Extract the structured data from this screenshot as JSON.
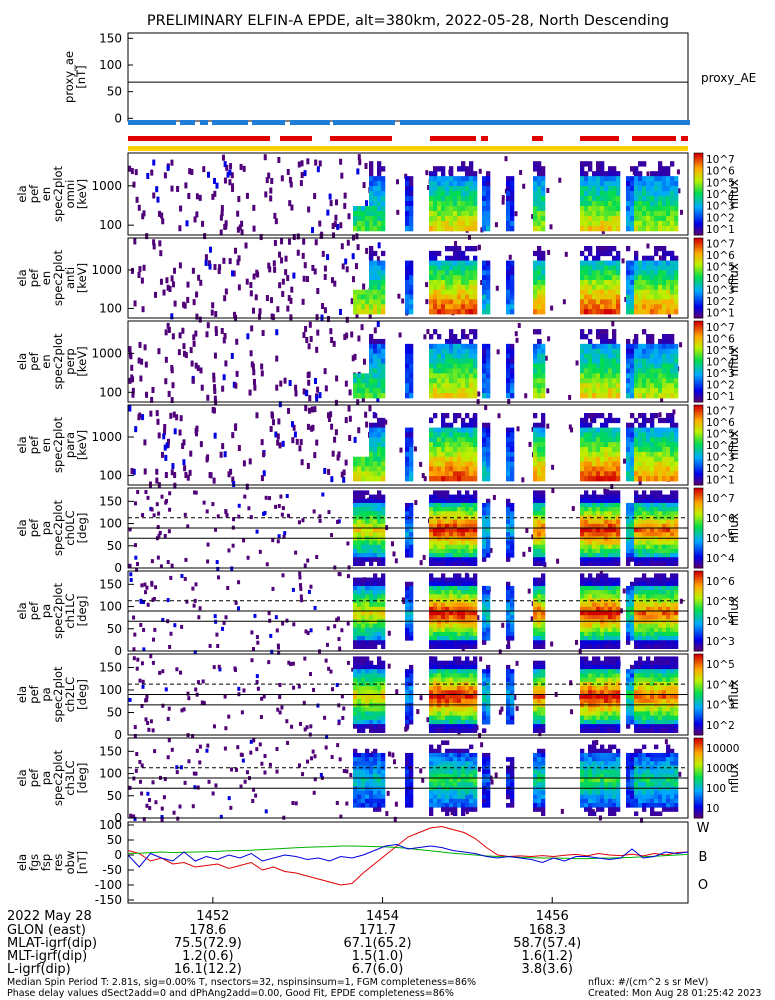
{
  "title": "PRELIMINARY ELFIN-A EPDE, alt=380km, 2022-05-28, North Descending",
  "chart_data": [
    {
      "type": "line",
      "name": "proxy_ae",
      "ylabel": [
        "proxy_ae",
        "[nT]"
      ],
      "ylim": [
        -5,
        160
      ],
      "ticks": [
        "150",
        "100",
        "50",
        "0"
      ],
      "tick_values": [
        150,
        100,
        50,
        0
      ],
      "legend": "proxy_AE",
      "value": 68
    },
    {
      "type": "heatmap",
      "name": "energy spectrogram (omni)",
      "ylabel": [
        "ela",
        "pef",
        "en",
        "spec2plot",
        "omni",
        "[keV]"
      ],
      "yscale": "log",
      "ticks": [
        "1000",
        "100"
      ],
      "zlabel": "nflux",
      "zticks": [
        "10^7",
        "10^6",
        "10^5",
        "10^4",
        "10^3",
        "10^2",
        "10^1"
      ]
    },
    {
      "type": "heatmap",
      "name": "energy spectrogram (anti)",
      "ylabel": [
        "ela",
        "pef",
        "en",
        "spec2plot",
        "anti",
        "[keV]"
      ],
      "yscale": "log",
      "ticks": [
        "1000",
        "100"
      ],
      "zlabel": "nflux",
      "zticks": [
        "10^7",
        "10^6",
        "10^5",
        "10^4",
        "10^3",
        "10^2",
        "10^1"
      ]
    },
    {
      "type": "heatmap",
      "name": "energy spectrogram (perp)",
      "ylabel": [
        "ela",
        "pef",
        "en",
        "spec2plot",
        "perp",
        "[keV]"
      ],
      "yscale": "log",
      "ticks": [
        "1000",
        "100"
      ],
      "zlabel": "nflux",
      "zticks": [
        "10^7",
        "10^6",
        "10^5",
        "10^4",
        "10^3",
        "10^2",
        "10^1"
      ]
    },
    {
      "type": "heatmap",
      "name": "energy spectrogram (para)",
      "ylabel": [
        "ela",
        "pef",
        "en",
        "spec2plot",
        "para",
        "[keV]"
      ],
      "yscale": "log",
      "ticks": [
        "1000",
        "100"
      ],
      "zlabel": "nflux",
      "zticks": [
        "10^7",
        "10^6",
        "10^5",
        "10^4",
        "10^3",
        "10^2",
        "10^1"
      ]
    },
    {
      "type": "heatmap",
      "name": "pitch angle ch0LC",
      "ylabel": [
        "ela",
        "pef",
        "pa",
        "spec2plot",
        "ch0LC",
        "[deg]"
      ],
      "ylim": [
        0,
        180
      ],
      "ticks": [
        "150",
        "100",
        "50",
        "0"
      ],
      "tick_values": [
        150,
        100,
        50,
        0
      ],
      "zlabel": "nflux",
      "zticks": [
        "10^7",
        "10^6",
        "10^5",
        "10^4"
      ]
    },
    {
      "type": "heatmap",
      "name": "pitch angle ch1LC",
      "ylabel": [
        "ela",
        "pef",
        "pa",
        "spec2plot",
        "ch1LC",
        "[deg]"
      ],
      "ylim": [
        0,
        180
      ],
      "ticks": [
        "150",
        "100",
        "50",
        "0"
      ],
      "tick_values": [
        150,
        100,
        50,
        0
      ],
      "zlabel": "nflux",
      "zticks": [
        "10^6",
        "10^5",
        "10^4",
        "10^3"
      ]
    },
    {
      "type": "heatmap",
      "name": "pitch angle ch2LC",
      "ylabel": [
        "ela",
        "pef",
        "pa",
        "spec2plot",
        "ch2LC",
        "[deg]"
      ],
      "ylim": [
        0,
        180
      ],
      "ticks": [
        "150",
        "100",
        "50",
        "0"
      ],
      "tick_values": [
        150,
        100,
        50,
        0
      ],
      "zlabel": "nflux",
      "zticks": [
        "10^5",
        "10^4",
        "10^3",
        "10^2"
      ]
    },
    {
      "type": "heatmap",
      "name": "pitch angle ch3LC",
      "ylabel": [
        "ela",
        "pef",
        "pa",
        "spec2plot",
        "ch3LC",
        "[deg]"
      ],
      "ylim": [
        0,
        180
      ],
      "ticks": [
        "150",
        "100",
        "50",
        "0"
      ],
      "tick_values": [
        150,
        100,
        50,
        0
      ],
      "zlabel": "nflux",
      "zticks": [
        "10000",
        "1000",
        "100",
        "10"
      ]
    },
    {
      "type": "line",
      "name": "magnetic residual",
      "ylabel": [
        "ela",
        "fgs",
        "fsp",
        "res",
        "obw",
        "[nT]"
      ],
      "ylim": [
        -160,
        110
      ],
      "ticks": [
        "100",
        "50",
        "0",
        "-50",
        "-100",
        "-150"
      ],
      "tick_values": [
        100,
        50,
        0,
        -50,
        -100,
        -150
      ],
      "legend": [
        "W",
        "B",
        "O"
      ],
      "x": [
        0,
        2,
        4,
        6,
        8,
        10,
        12,
        14,
        16,
        18,
        20,
        22,
        24,
        26,
        28,
        30,
        32,
        34,
        36,
        38,
        40,
        42,
        44,
        46,
        48,
        50,
        52,
        54,
        56,
        58,
        60,
        62,
        64,
        66,
        68,
        70,
        72,
        74,
        76,
        78,
        80,
        82,
        84,
        86,
        88,
        90,
        92,
        94,
        96,
        98,
        100
      ],
      "series": [
        {
          "color": "#e00000",
          "values": [
            15,
            5,
            -20,
            -10,
            -30,
            -25,
            -40,
            -35,
            -30,
            -45,
            -35,
            -25,
            -50,
            -40,
            -55,
            -60,
            -70,
            -80,
            -90,
            -100,
            -95,
            -60,
            -30,
            0,
            30,
            60,
            75,
            90,
            95,
            85,
            75,
            55,
            25,
            0,
            -5,
            -3,
            -5,
            -2,
            -5,
            -1,
            2,
            -3,
            5,
            0,
            -2,
            3,
            -3,
            5,
            0,
            8,
            10
          ]
        },
        {
          "color": "#00b000",
          "values": [
            5,
            6,
            8,
            10,
            8,
            9,
            10,
            11,
            12,
            14,
            15,
            16,
            18,
            20,
            22,
            24,
            26,
            27,
            28,
            30,
            30,
            29,
            28,
            27,
            25,
            22,
            18,
            14,
            10,
            6,
            3,
            0,
            -3,
            -5,
            -6,
            -8,
            -9,
            -10,
            -10,
            -11,
            -12,
            -12,
            -11,
            -10,
            -9,
            -8,
            -6,
            -4,
            -2,
            0,
            2
          ]
        },
        {
          "color": "#0000e0",
          "values": [
            0,
            -40,
            5,
            -10,
            -20,
            10,
            -20,
            -5,
            -15,
            0,
            -10,
            5,
            -20,
            -10,
            0,
            -5,
            -15,
            -10,
            -20,
            -5,
            -10,
            0,
            15,
            30,
            35,
            20,
            25,
            30,
            25,
            15,
            10,
            5,
            -5,
            -10,
            -5,
            -10,
            -15,
            -25,
            -10,
            -20,
            -5,
            -5,
            -10,
            -15,
            -10,
            20,
            -10,
            -5,
            10,
            5,
            10
          ]
        }
      ]
    }
  ],
  "time_axis": {
    "ticks": [
      "1452",
      "1454",
      "1456"
    ],
    "tick_values": [
      52,
      54,
      56
    ],
    "range": [
      51.0,
      57.6
    ]
  },
  "footer_table": {
    "date": "2022 May 28",
    "rows": [
      {
        "label": "GLON (east)",
        "values": [
          "178.6",
          "171.7",
          "168.3"
        ]
      },
      {
        "label": "MLAT-igrf(dip)",
        "values": [
          "75.5(72.9)",
          "67.1(65.2)",
          "58.7(57.4)"
        ]
      },
      {
        "label": "MLT-igrf(dip)",
        "values": [
          "1.2(0.6)",
          "1.5(1.0)",
          "1.6(1.2)"
        ]
      },
      {
        "label": "L-igrf(dip)",
        "values": [
          "16.1(12.2)",
          "6.7(6.0)",
          "3.8(3.6)"
        ]
      }
    ]
  },
  "bottom_notes": {
    "line1": "Median Spin Period T: 2.81s, sig=0.00% T, nsectors=32, nspinsinsum=1, FGM completeness=86%",
    "line2": "Phase delay values dSect2add=0 and dPhAng2add=0.00, Good Fit, EPDE completeness=86%",
    "units": "nflux: #/(cm^2 s sr MeV)",
    "created": "Created: Mon Aug 28 01:25:42 2023"
  },
  "colors": {
    "blue_bar": "#1e7dd6",
    "red_bar": "#e00000",
    "yellow_bar": "#ffd000"
  }
}
